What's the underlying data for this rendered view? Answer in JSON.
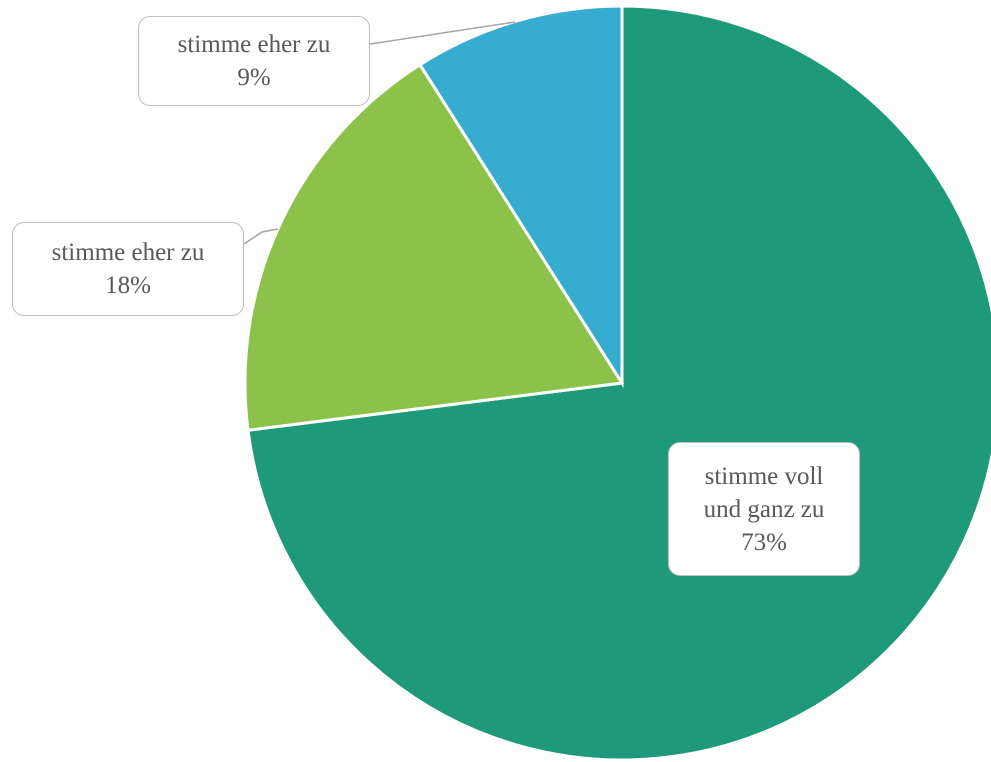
{
  "chart_data": {
    "type": "pie",
    "categories": [
      "stimme voll und ganz zu",
      "stimme eher zu",
      "stimme eher zu"
    ],
    "values": [
      73,
      18,
      9
    ],
    "value_labels": [
      "73%",
      "18%",
      "9%"
    ],
    "colors": [
      "#1e9a78",
      "#8cc14a",
      "#36acd0"
    ]
  }
}
